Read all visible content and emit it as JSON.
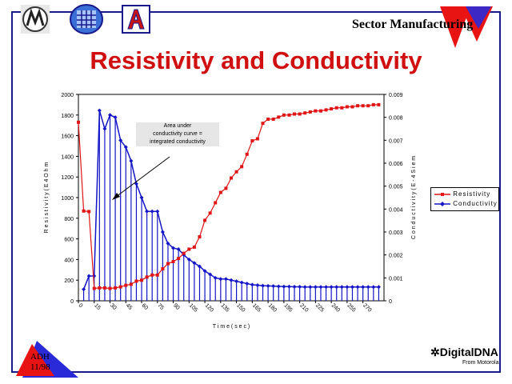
{
  "header": {
    "label": "Sector Manufacturing",
    "logos": [
      "motorola-logo",
      "university-seal-logo",
      "arizona-a-logo"
    ]
  },
  "slide_title": "Resistivity and Conductivity",
  "badge": {
    "line1": "ADH",
    "line2": "11/98"
  },
  "brand": {
    "name": "DigitalDNA",
    "sub": "From Motorola"
  },
  "colors": {
    "resistivity": "#e01414",
    "conductivity": "#1414c8",
    "frame": "#1a1a8c",
    "title": "#d01010"
  },
  "chart_data": {
    "type": "line",
    "title": "",
    "xlabel": "T i m e  ( s e c )",
    "ylabel_left": "R e s i s t i v i t y  ( E 4  O h m",
    "ylabel_right": "C o n d u c t i v i t y  ( E - 4  S i e m",
    "xlim": [
      0,
      290
    ],
    "ylim_left": [
      0,
      2000
    ],
    "ylim_right": [
      0,
      0.009
    ],
    "x_ticks": [
      "0",
      "15",
      "30",
      "45",
      "60",
      "75",
      "90",
      "105",
      "120",
      "135",
      "150",
      "165",
      "180",
      "195",
      "210",
      "225",
      "240",
      "255",
      "270"
    ],
    "y_left_ticks": [
      "0",
      "200",
      "400",
      "600",
      "800",
      "1000",
      "1200",
      "1400",
      "1600",
      "1800",
      "2000"
    ],
    "y_right_ticks": [
      "0",
      "0.001",
      "0.002",
      "0.003",
      "0.004",
      "0.005",
      "0.006",
      "0.007",
      "0.008",
      "0.009"
    ],
    "annotation": {
      "lines": [
        "Area under",
        "conductivity curve  =",
        "integrated conductivity"
      ]
    },
    "legend": {
      "placement": "right",
      "entries": [
        "Resistivity",
        "Conductivity"
      ]
    },
    "series": [
      {
        "name": "Resistivity",
        "axis": "left",
        "x": [
          0,
          5,
          10,
          15,
          20,
          25,
          30,
          35,
          40,
          45,
          50,
          55,
          60,
          65,
          70,
          75,
          80,
          85,
          90,
          95,
          100,
          105,
          110,
          115,
          120,
          125,
          130,
          135,
          140,
          145,
          150,
          155,
          160,
          165,
          170,
          175,
          180,
          185,
          190,
          195,
          200,
          205,
          210,
          215,
          220,
          225,
          230,
          235,
          240,
          245,
          250,
          255,
          260,
          265,
          270,
          275,
          280,
          285
        ],
        "values": [
          1730,
          870,
          865,
          120,
          125,
          125,
          120,
          125,
          135,
          150,
          160,
          190,
          200,
          230,
          250,
          250,
          310,
          360,
          380,
          410,
          460,
          500,
          520,
          620,
          780,
          850,
          950,
          1050,
          1090,
          1190,
          1250,
          1300,
          1420,
          1550,
          1570,
          1720,
          1760,
          1760,
          1780,
          1800,
          1800,
          1810,
          1810,
          1820,
          1830,
          1840,
          1840,
          1850,
          1860,
          1870,
          1870,
          1880,
          1880,
          1890,
          1890,
          1890,
          1900,
          1900
        ]
      },
      {
        "name": "Conductivity",
        "axis": "right",
        "x": [
          5,
          10,
          15,
          20,
          25,
          30,
          35,
          40,
          45,
          50,
          55,
          60,
          65,
          70,
          75,
          80,
          85,
          90,
          95,
          100,
          105,
          110,
          115,
          120,
          125,
          130,
          135,
          140,
          145,
          150,
          155,
          160,
          165,
          170,
          175,
          180,
          185,
          190,
          195,
          200,
          205,
          210,
          215,
          220,
          225,
          230,
          235,
          240,
          245,
          250,
          255,
          260,
          265,
          270,
          275,
          280,
          285
        ],
        "values": [
          0.0005,
          0.00108,
          0.00108,
          0.0083,
          0.0075,
          0.0081,
          0.008,
          0.007,
          0.0067,
          0.0061,
          0.0051,
          0.0045,
          0.0039,
          0.0039,
          0.0039,
          0.003,
          0.0025,
          0.0023,
          0.00225,
          0.002,
          0.0018,
          0.00165,
          0.0015,
          0.0013,
          0.00115,
          0.001,
          0.00095,
          0.00095,
          0.0009,
          0.00085,
          0.0008,
          0.00075,
          0.0007,
          0.00068,
          0.00066,
          0.00065,
          0.00064,
          0.00063,
          0.00062,
          0.00062,
          0.00061,
          0.00061,
          0.0006,
          0.0006,
          0.0006,
          0.0006,
          0.0006,
          0.0006,
          0.0006,
          0.0006,
          0.0006,
          0.0006,
          0.0006,
          0.0006,
          0.0006,
          0.0006,
          0.0006
        ]
      }
    ]
  }
}
